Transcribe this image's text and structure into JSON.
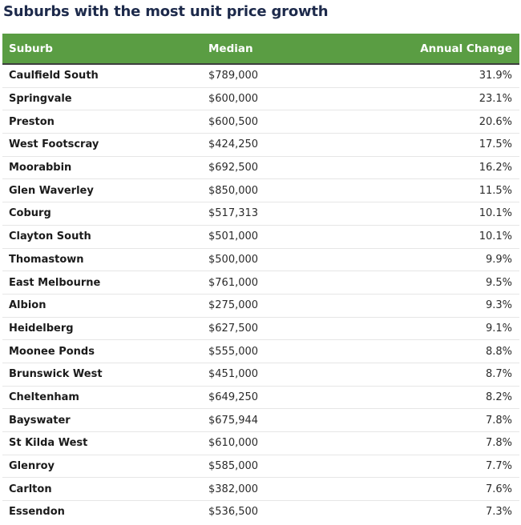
{
  "chart_data": {
    "type": "table",
    "title": "Suburbs with the most unit price growth",
    "columns": [
      "Suburb",
      "Median",
      "Annual Change"
    ],
    "rows": [
      [
        "Caulfield South",
        "$789,000",
        "31.9%"
      ],
      [
        "Springvale",
        "$600,000",
        "23.1%"
      ],
      [
        "Preston",
        "$600,500",
        "20.6%"
      ],
      [
        "West Footscray",
        "$424,250",
        "17.5%"
      ],
      [
        "Moorabbin",
        "$692,500",
        "16.2%"
      ],
      [
        "Glen Waverley",
        "$850,000",
        "11.5%"
      ],
      [
        "Coburg",
        "$517,313",
        "10.1%"
      ],
      [
        "Clayton South",
        "$501,000",
        "10.1%"
      ],
      [
        "Thomastown",
        "$500,000",
        "9.9%"
      ],
      [
        "East Melbourne",
        "$761,000",
        "9.5%"
      ],
      [
        "Albion",
        "$275,000",
        "9.3%"
      ],
      [
        "Heidelberg",
        "$627,500",
        "9.1%"
      ],
      [
        "Moonee Ponds",
        "$555,000",
        "8.8%"
      ],
      [
        "Brunswick West",
        "$451,000",
        "8.7%"
      ],
      [
        "Cheltenham",
        "$649,250",
        "8.2%"
      ],
      [
        "Bayswater",
        "$675,944",
        "7.8%"
      ],
      [
        "St Kilda West",
        "$610,000",
        "7.8%"
      ],
      [
        "Glenroy",
        "$585,000",
        "7.7%"
      ],
      [
        "Carlton",
        "$382,000",
        "7.6%"
      ],
      [
        "Essendon",
        "$536,500",
        "7.3%"
      ]
    ]
  },
  "colors": {
    "header_bg": "#5a9d43",
    "title": "#1d2a4b"
  }
}
